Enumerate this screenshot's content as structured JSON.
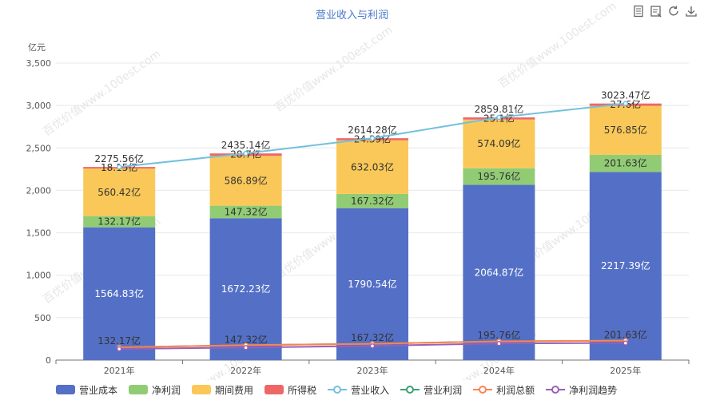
{
  "chart_data": {
    "type": "bar",
    "title": "营业收入与利润",
    "unit_label": "亿元",
    "ylim": [
      0,
      3500
    ],
    "y_ticks": [
      "0",
      "500",
      "1,000",
      "1,500",
      "2,000",
      "2,500",
      "3,000",
      "3,500"
    ],
    "y_tick_values": [
      0,
      500,
      1000,
      1500,
      2000,
      2500,
      3000,
      3500
    ],
    "categories": [
      "2021年",
      "2022年",
      "2023年",
      "2024年",
      "2025年"
    ],
    "stacked_series": [
      {
        "name": "营业成本",
        "color": "#5470c6",
        "label_color": "#ffffff",
        "values": [
          1564.83,
          1672.23,
          1790.54,
          2064.87,
          2217.39
        ],
        "labels": [
          "1564.83亿",
          "1672.23亿",
          "1790.54亿",
          "2064.87亿",
          "2217.39亿"
        ]
      },
      {
        "name": "净利润",
        "color": "#91cc75",
        "label_color": "#333333",
        "values": [
          132.17,
          147.32,
          167.32,
          195.76,
          201.63
        ],
        "labels": [
          "132.17亿",
          "147.32亿",
          "167.32亿",
          "195.76亿",
          "201.63亿"
        ]
      },
      {
        "name": "期间费用",
        "color": "#fac858",
        "label_color": "#333333",
        "values": [
          560.42,
          586.89,
          632.03,
          574.09,
          576.85
        ],
        "labels": [
          "560.42亿",
          "586.89亿",
          "632.03亿",
          "574.09亿",
          "576.85亿"
        ]
      },
      {
        "name": "所得税",
        "color": "#ee6666",
        "label_color": "#333333",
        "values": [
          18.15,
          28.7,
          24.39,
          25.1,
          27.6
        ],
        "labels": [
          "18.15亿",
          "28.7亿",
          "24.39亿",
          "25.1亿",
          "27.6亿"
        ]
      }
    ],
    "line_series": [
      {
        "name": "营业收入",
        "color": "#73c0de",
        "values": [
          2275.56,
          2435.14,
          2614.28,
          2859.81,
          3023.47
        ],
        "labels": [
          "2275.56亿",
          "2435.14亿",
          "2614.28亿",
          "2859.81亿",
          "3023.47亿"
        ],
        "show_labels": true
      },
      {
        "name": "营业利润",
        "color": "#3ba272",
        "values": [
          150.32,
          176.02,
          191.71,
          220.86,
          229.23
        ],
        "labels": [],
        "show_labels": false
      },
      {
        "name": "利润总额",
        "color": "#fc8452",
        "values": [
          150.32,
          176.02,
          191.71,
          220.86,
          229.23
        ],
        "labels": [],
        "show_labels": false
      },
      {
        "name": "净利润趋势",
        "color": "#9a60b4",
        "values": [
          132.17,
          147.32,
          167.32,
          195.76,
          201.63
        ],
        "labels": [
          "132.17亿",
          "147.32亿",
          "167.32亿",
          "195.76亿",
          "201.63亿"
        ],
        "show_labels": true
      }
    ],
    "legend_position": "bottom",
    "grid": true
  },
  "toolbox": {
    "items": [
      {
        "name": "data-view",
        "icon": "data-view-icon"
      },
      {
        "name": "restore",
        "icon": "restore-icon"
      },
      {
        "name": "refresh",
        "icon": "refresh-icon"
      },
      {
        "name": "download",
        "icon": "download-icon"
      }
    ]
  }
}
